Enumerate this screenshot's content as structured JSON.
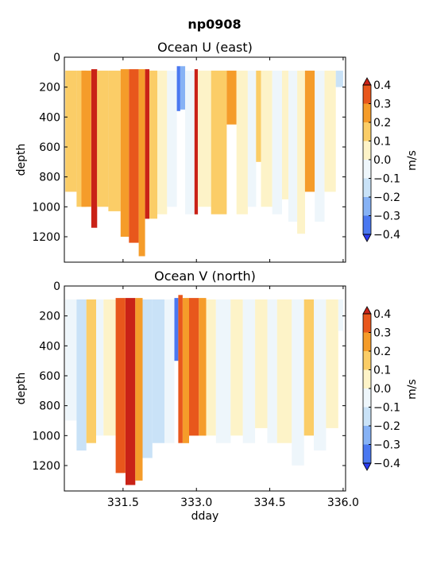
{
  "figure": {
    "title": "np0908"
  },
  "chart_data": [
    {
      "type": "heatmap",
      "title": "Ocean U (east)",
      "xlabel": "",
      "ylabel": "depth",
      "xlim": [
        330.3,
        336.05
      ],
      "ylim": [
        1370,
        0
      ],
      "xticks": [
        331.5,
        333.0,
        334.5,
        336.0
      ],
      "xtick_labels": [],
      "yticks": [
        0,
        200,
        400,
        600,
        800,
        1000,
        1200
      ],
      "ytick_labels": [
        "0",
        "200",
        "400",
        "600",
        "800",
        "1000",
        "1200"
      ],
      "colorbar": {
        "label": "m/s",
        "levels": [
          -0.4,
          -0.3,
          -0.2,
          -0.1,
          0.0,
          0.1,
          0.2,
          0.3,
          0.4
        ],
        "tick_labels": [
          "−0.4",
          "−0.3",
          "−0.2",
          "−0.1",
          "0.0",
          "0.1",
          "0.2",
          "0.3",
          "0.4"
        ],
        "colors": [
          "#2b3bf0",
          "#4a78f0",
          "#86b2f5",
          "#c9e2f7",
          "#eef6fb",
          "#fdf3c8",
          "#fbcd67",
          "#f59c2a",
          "#e8571c",
          "#c92217"
        ],
        "extend": "both"
      },
      "bands": [
        {
          "x0": 330.32,
          "x1": 330.55,
          "top": 90,
          "bottom": 900,
          "value": 0.1
        },
        {
          "x0": 330.55,
          "x1": 330.75,
          "top": 90,
          "bottom": 1000,
          "value": 0.15
        },
        {
          "x0": 330.65,
          "x1": 330.85,
          "top": 90,
          "bottom": 1000,
          "value": 0.28
        },
        {
          "x0": 330.85,
          "x1": 330.97,
          "top": 80,
          "bottom": 1140,
          "value": 0.42
        },
        {
          "x0": 330.97,
          "x1": 331.2,
          "top": 90,
          "bottom": 1000,
          "value": 0.1
        },
        {
          "x0": 331.2,
          "x1": 331.45,
          "top": 90,
          "bottom": 1030,
          "value": 0.12
        },
        {
          "x0": 331.45,
          "x1": 331.62,
          "top": 80,
          "bottom": 1200,
          "value": 0.25
        },
        {
          "x0": 331.62,
          "x1": 331.82,
          "top": 80,
          "bottom": 1240,
          "value": 0.3
        },
        {
          "x0": 331.82,
          "x1": 331.95,
          "top": 80,
          "bottom": 1330,
          "value": 0.22
        },
        {
          "x0": 331.95,
          "x1": 332.04,
          "top": 80,
          "bottom": 1080,
          "value": 0.42
        },
        {
          "x0": 332.04,
          "x1": 332.2,
          "top": 90,
          "bottom": 1080,
          "value": 0.12
        },
        {
          "x0": 332.2,
          "x1": 332.4,
          "top": 90,
          "bottom": 1050,
          "value": 0.07
        },
        {
          "x0": 332.4,
          "x1": 332.6,
          "top": 90,
          "bottom": 1000,
          "value": -0.05
        },
        {
          "x0": 332.6,
          "x1": 332.67,
          "top": 60,
          "bottom": 360,
          "value": -0.35
        },
        {
          "x0": 332.67,
          "x1": 332.77,
          "top": 60,
          "bottom": 350,
          "value": -0.25
        },
        {
          "x0": 332.77,
          "x1": 332.96,
          "top": 90,
          "bottom": 1050,
          "value": -0.1
        },
        {
          "x0": 332.96,
          "x1": 333.03,
          "top": 80,
          "bottom": 1050,
          "value": 0.42
        },
        {
          "x0": 333.03,
          "x1": 333.3,
          "top": 90,
          "bottom": 1000,
          "value": 0.05
        },
        {
          "x0": 333.3,
          "x1": 333.62,
          "top": 90,
          "bottom": 1050,
          "value": 0.12
        },
        {
          "x0": 333.62,
          "x1": 333.82,
          "top": 90,
          "bottom": 450,
          "value": 0.22
        },
        {
          "x0": 333.82,
          "x1": 334.05,
          "top": 90,
          "bottom": 1050,
          "value": 0.05
        },
        {
          "x0": 334.05,
          "x1": 334.22,
          "top": 90,
          "bottom": 1000,
          "value": -0.06
        },
        {
          "x0": 334.22,
          "x1": 334.32,
          "top": 90,
          "bottom": 700,
          "value": 0.15
        },
        {
          "x0": 334.32,
          "x1": 334.55,
          "top": 90,
          "bottom": 1000,
          "value": 0.06
        },
        {
          "x0": 334.55,
          "x1": 334.75,
          "top": 90,
          "bottom": 1050,
          "value": -0.05
        },
        {
          "x0": 334.75,
          "x1": 334.88,
          "top": 90,
          "bottom": 950,
          "value": 0.08
        },
        {
          "x0": 334.88,
          "x1": 335.06,
          "top": 90,
          "bottom": 1100,
          "value": -0.06
        },
        {
          "x0": 335.06,
          "x1": 335.22,
          "top": 90,
          "bottom": 1180,
          "value": 0.06
        },
        {
          "x0": 335.22,
          "x1": 335.42,
          "top": 90,
          "bottom": 900,
          "value": 0.2
        },
        {
          "x0": 335.42,
          "x1": 335.62,
          "top": 90,
          "bottom": 1100,
          "value": -0.05
        },
        {
          "x0": 335.62,
          "x1": 335.85,
          "top": 90,
          "bottom": 900,
          "value": 0.06
        },
        {
          "x0": 335.85,
          "x1": 336.0,
          "top": 90,
          "bottom": 200,
          "value": -0.15
        }
      ]
    },
    {
      "type": "heatmap",
      "title": "Ocean V (north)",
      "xlabel": "dday",
      "ylabel": "depth",
      "xlim": [
        330.3,
        336.05
      ],
      "ylim": [
        1370,
        0
      ],
      "xticks": [
        331.5,
        333.0,
        334.5,
        336.0
      ],
      "xtick_labels": [
        "331.5",
        "333.0",
        "334.5",
        "336.0"
      ],
      "yticks": [
        0,
        200,
        400,
        600,
        800,
        1000,
        1200
      ],
      "ytick_labels": [
        "0",
        "200",
        "400",
        "600",
        "800",
        "1000",
        "1200"
      ],
      "colorbar": {
        "label": "m/s",
        "levels": [
          -0.4,
          -0.3,
          -0.2,
          -0.1,
          0.0,
          0.1,
          0.2,
          0.3,
          0.4
        ],
        "tick_labels": [
          "−0.4",
          "−0.3",
          "−0.2",
          "−0.1",
          "0.0",
          "0.1",
          "0.2",
          "0.3",
          "0.4"
        ],
        "colors": [
          "#2b3bf0",
          "#4a78f0",
          "#86b2f5",
          "#c9e2f7",
          "#eef6fb",
          "#fdf3c8",
          "#fbcd67",
          "#f59c2a",
          "#e8571c",
          "#c92217"
        ],
        "extend": "both"
      },
      "bands": [
        {
          "x0": 330.32,
          "x1": 330.55,
          "top": 90,
          "bottom": 900,
          "value": -0.05
        },
        {
          "x0": 330.55,
          "x1": 330.75,
          "top": 90,
          "bottom": 1100,
          "value": -0.12
        },
        {
          "x0": 330.75,
          "x1": 330.95,
          "top": 90,
          "bottom": 1050,
          "value": 0.12
        },
        {
          "x0": 330.95,
          "x1": 331.1,
          "top": 90,
          "bottom": 1000,
          "value": -0.05
        },
        {
          "x0": 331.1,
          "x1": 331.35,
          "top": 90,
          "bottom": 1000,
          "value": 0.06
        },
        {
          "x0": 331.35,
          "x1": 331.55,
          "top": 80,
          "bottom": 1250,
          "value": 0.3
        },
        {
          "x0": 331.55,
          "x1": 331.75,
          "top": 80,
          "bottom": 1330,
          "value": 0.42
        },
        {
          "x0": 331.75,
          "x1": 331.9,
          "top": 80,
          "bottom": 1300,
          "value": 0.22
        },
        {
          "x0": 331.9,
          "x1": 332.1,
          "top": 90,
          "bottom": 1150,
          "value": -0.2
        },
        {
          "x0": 332.1,
          "x1": 332.35,
          "top": 90,
          "bottom": 1050,
          "value": -0.15
        },
        {
          "x0": 332.35,
          "x1": 332.55,
          "top": 90,
          "bottom": 1050,
          "value": -0.1
        },
        {
          "x0": 332.55,
          "x1": 332.63,
          "top": 80,
          "bottom": 500,
          "value": -0.32
        },
        {
          "x0": 332.63,
          "x1": 332.72,
          "top": 60,
          "bottom": 1050,
          "value": 0.35
        },
        {
          "x0": 332.72,
          "x1": 332.85,
          "top": 80,
          "bottom": 1050,
          "value": 0.22
        },
        {
          "x0": 332.85,
          "x1": 333.05,
          "top": 80,
          "bottom": 1000,
          "value": 0.35
        },
        {
          "x0": 333.05,
          "x1": 333.2,
          "top": 80,
          "bottom": 1000,
          "value": 0.25
        },
        {
          "x0": 333.2,
          "x1": 333.4,
          "top": 90,
          "bottom": 1000,
          "value": 0.08
        },
        {
          "x0": 333.4,
          "x1": 333.7,
          "top": 90,
          "bottom": 1050,
          "value": -0.05
        },
        {
          "x0": 333.7,
          "x1": 333.95,
          "top": 90,
          "bottom": 1000,
          "value": 0.06
        },
        {
          "x0": 333.95,
          "x1": 334.2,
          "top": 90,
          "bottom": 1050,
          "value": -0.05
        },
        {
          "x0": 334.2,
          "x1": 334.45,
          "top": 90,
          "bottom": 950,
          "value": 0.08
        },
        {
          "x0": 334.45,
          "x1": 334.65,
          "top": 90,
          "bottom": 1050,
          "value": -0.06
        },
        {
          "x0": 334.65,
          "x1": 334.95,
          "top": 90,
          "bottom": 1050,
          "value": 0.07
        },
        {
          "x0": 334.95,
          "x1": 335.2,
          "top": 90,
          "bottom": 1200,
          "value": -0.05
        },
        {
          "x0": 335.2,
          "x1": 335.4,
          "top": 90,
          "bottom": 1000,
          "value": 0.12
        },
        {
          "x0": 335.4,
          "x1": 335.65,
          "top": 90,
          "bottom": 1100,
          "value": -0.05
        },
        {
          "x0": 335.65,
          "x1": 335.9,
          "top": 90,
          "bottom": 950,
          "value": 0.06
        },
        {
          "x0": 335.9,
          "x1": 336.0,
          "top": 90,
          "bottom": 300,
          "value": -0.08
        }
      ]
    }
  ]
}
